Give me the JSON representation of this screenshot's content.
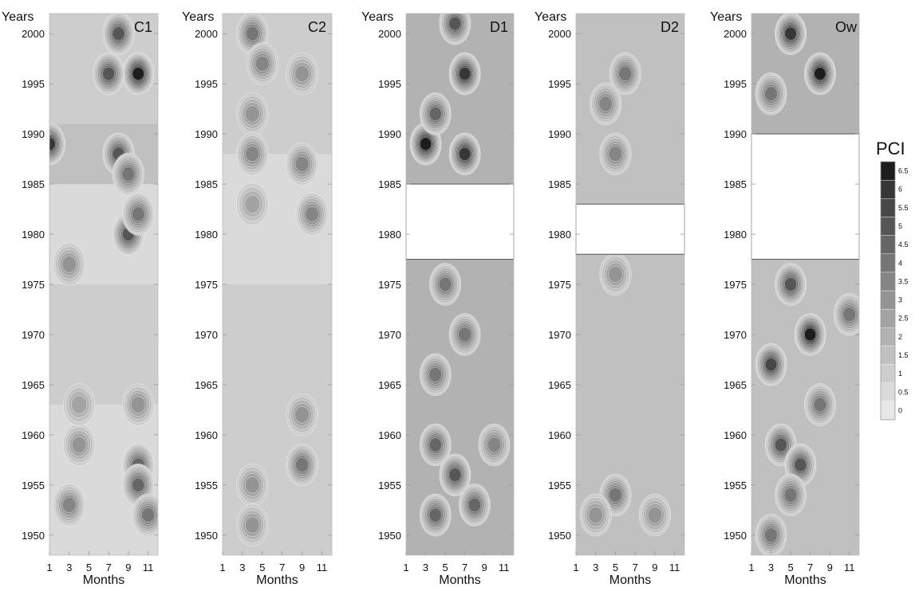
{
  "figure": {
    "colorbar_title": "PCI"
  },
  "chart_data": {
    "type": "heatmap",
    "x_tick_labels": [
      "1",
      "3",
      "5",
      "7",
      "9",
      "11"
    ],
    "y_tick_labels": [
      "1950",
      "1955",
      "1960",
      "1965",
      "1970",
      "1975",
      "1980",
      "1985",
      "1990",
      "1995",
      "2000"
    ],
    "xlabel": "Months",
    "ylabel": "Years",
    "x_range": [
      1,
      12
    ],
    "y_range": [
      1948,
      2002
    ],
    "colorbar": {
      "label": "PCI",
      "levels": [
        0,
        0.5,
        1,
        1.5,
        2,
        2.5,
        3,
        3.5,
        4,
        4.5,
        5,
        5.5,
        6,
        6.5
      ],
      "tick_labels": [
        "0",
        "0.5",
        "1",
        "1.5",
        "2",
        "2.5",
        "3",
        "3.5",
        "4",
        "4.5",
        "5",
        "5.5",
        "6",
        "6.5"
      ],
      "colors": [
        "#e7e7e7",
        "#dadada",
        "#cdcdcd",
        "#c0c0c0",
        "#b2b2b2",
        "#a3a3a3",
        "#949494",
        "#858585",
        "#767676",
        "#666666",
        "#565656",
        "#474747",
        "#363636",
        "#1d1d1d"
      ]
    },
    "panels": [
      {
        "name": "C1",
        "missing_years": null,
        "base_level": 1.2,
        "year_bands": [
          {
            "from": 1948,
            "to": 1963,
            "level": 0.5
          },
          {
            "from": 1963,
            "to": 1975,
            "level": 1.3
          },
          {
            "from": 1975,
            "to": 1985,
            "level": 0.5
          },
          {
            "from": 1985,
            "to": 1991,
            "level": 1.6
          },
          {
            "from": 1991,
            "to": 2002,
            "level": 1.4
          }
        ],
        "hotspots": [
          {
            "month": 10,
            "year": 1996,
            "level": 6.5
          },
          {
            "month": 7,
            "year": 1996,
            "level": 5
          },
          {
            "month": 8,
            "year": 2000,
            "level": 5
          },
          {
            "month": 1,
            "year": 1989,
            "level": 6
          },
          {
            "month": 8,
            "year": 1988,
            "level": 5
          },
          {
            "month": 9,
            "year": 1986,
            "level": 4
          },
          {
            "month": 9,
            "year": 1980,
            "level": 5
          },
          {
            "month": 10,
            "year": 1982,
            "level": 4
          },
          {
            "month": 3,
            "year": 1977,
            "level": 3
          },
          {
            "month": 4,
            "year": 1959,
            "level": 3
          },
          {
            "month": 3,
            "year": 1953,
            "level": 3.5
          },
          {
            "month": 10,
            "year": 1957,
            "level": 4.5
          },
          {
            "month": 10,
            "year": 1955,
            "level": 4.5
          },
          {
            "month": 11,
            "year": 1952,
            "level": 4
          },
          {
            "month": 10,
            "year": 1963,
            "level": 3
          },
          {
            "month": 4,
            "year": 1963,
            "level": 2.5
          }
        ]
      },
      {
        "name": "C2",
        "missing_years": null,
        "base_level": 0.9,
        "year_bands": [
          {
            "from": 1948,
            "to": 1975,
            "level": 1
          },
          {
            "from": 1975,
            "to": 1988,
            "level": 0.7
          },
          {
            "from": 1988,
            "to": 2002,
            "level": 1.2
          }
        ],
        "hotspots": [
          {
            "month": 4,
            "year": 2000,
            "level": 4
          },
          {
            "month": 5,
            "year": 1997,
            "level": 3.5
          },
          {
            "month": 9,
            "year": 1996,
            "level": 3
          },
          {
            "month": 4,
            "year": 1992,
            "level": 3
          },
          {
            "month": 4,
            "year": 1988,
            "level": 3.5
          },
          {
            "month": 9,
            "year": 1987,
            "level": 3.5
          },
          {
            "month": 10,
            "year": 1982,
            "level": 3.5
          },
          {
            "month": 4,
            "year": 1983,
            "level": 2.5
          },
          {
            "month": 9,
            "year": 1962,
            "level": 3
          },
          {
            "month": 9,
            "year": 1957,
            "level": 4
          },
          {
            "month": 4,
            "year": 1955,
            "level": 3
          },
          {
            "month": 4,
            "year": 1951,
            "level": 3
          }
        ]
      },
      {
        "name": "D1",
        "missing_years": [
          1977.5,
          1985
        ],
        "base_level": 1.8,
        "year_bands": [
          {
            "from": 1948,
            "to": 1977.5,
            "level": 2
          },
          {
            "from": 1985,
            "to": 2002,
            "level": 2.4
          }
        ],
        "hotspots": [
          {
            "month": 7,
            "year": 1996,
            "level": 6
          },
          {
            "month": 6,
            "year": 2001,
            "level": 5
          },
          {
            "month": 3,
            "year": 1989,
            "level": 6.5
          },
          {
            "month": 7,
            "year": 1988,
            "level": 6
          },
          {
            "month": 4,
            "year": 1992,
            "level": 4.5
          },
          {
            "month": 5,
            "year": 1975,
            "level": 4
          },
          {
            "month": 7,
            "year": 1970,
            "level": 4
          },
          {
            "month": 4,
            "year": 1966,
            "level": 4
          },
          {
            "month": 4,
            "year": 1959,
            "level": 4.5
          },
          {
            "month": 6,
            "year": 1956,
            "level": 5
          },
          {
            "month": 4,
            "year": 1952,
            "level": 4.5
          },
          {
            "month": 8,
            "year": 1953,
            "level": 4.5
          },
          {
            "month": 10,
            "year": 1959,
            "level": 3.5
          }
        ]
      },
      {
        "name": "D2",
        "missing_years": [
          1978,
          1983
        ],
        "base_level": 1.5,
        "year_bands": [
          {
            "from": 1948,
            "to": 1978,
            "level": 1.5
          },
          {
            "from": 1983,
            "to": 2002,
            "level": 1.8
          }
        ],
        "hotspots": [
          {
            "month": 6,
            "year": 1996,
            "level": 4
          },
          {
            "month": 4,
            "year": 1993,
            "level": 3.5
          },
          {
            "month": 5,
            "year": 1988,
            "level": 3.5
          },
          {
            "month": 5,
            "year": 1976,
            "level": 3
          },
          {
            "month": 5,
            "year": 1954,
            "level": 4
          },
          {
            "month": 3,
            "year": 1952,
            "level": 3
          },
          {
            "month": 9,
            "year": 1952,
            "level": 3
          }
        ]
      },
      {
        "name": "Ow",
        "missing_years": [
          1977.5,
          1990
        ],
        "base_level": 2,
        "year_bands": [
          {
            "from": 1948,
            "to": 1977.5,
            "level": 1.8
          },
          {
            "from": 1990,
            "to": 2002,
            "level": 2.2
          }
        ],
        "hotspots": [
          {
            "month": 8,
            "year": 1996,
            "level": 6.5
          },
          {
            "month": 5,
            "year": 2000,
            "level": 6
          },
          {
            "month": 3,
            "year": 1994,
            "level": 4
          },
          {
            "month": 7,
            "year": 1970,
            "level": 6.5
          },
          {
            "month": 5,
            "year": 1975,
            "level": 5
          },
          {
            "month": 3,
            "year": 1967,
            "level": 5.5
          },
          {
            "month": 4,
            "year": 1959,
            "level": 5
          },
          {
            "month": 6,
            "year": 1957,
            "level": 5
          },
          {
            "month": 3,
            "year": 1950,
            "level": 4
          },
          {
            "month": 5,
            "year": 1954,
            "level": 4
          },
          {
            "month": 8,
            "year": 1963,
            "level": 4
          },
          {
            "month": 11,
            "year": 1972,
            "level": 4
          }
        ]
      }
    ]
  }
}
